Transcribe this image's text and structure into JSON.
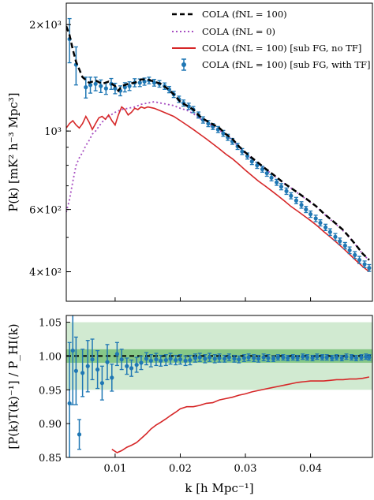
{
  "chart_data": [
    {
      "type": "line",
      "panel": "top",
      "yscale": "log",
      "xlim": [
        0.0025,
        0.0495
      ],
      "ylim": [
        330,
        2300
      ],
      "ylabel": "P(k) [mK² h⁻³ Mpc³]",
      "yticks": [
        {
          "value": 2000,
          "label": "2×10³"
        },
        {
          "value": 1000,
          "label": "10³"
        },
        {
          "value": 600,
          "label": "6×10²"
        },
        {
          "value": 400,
          "label": "4×10²"
        }
      ],
      "legend_position": "top-right",
      "series": [
        {
          "name": "COLA (fNL = 100)",
          "color": "#000000",
          "style": "dashed",
          "x": [
            0.0025,
            0.003,
            0.0035,
            0.004,
            0.005,
            0.006,
            0.0065,
            0.007,
            0.008,
            0.009,
            0.01,
            0.0105,
            0.011,
            0.012,
            0.013,
            0.014,
            0.015,
            0.016,
            0.017,
            0.018,
            0.019,
            0.02,
            0.021,
            0.022,
            0.023,
            0.024,
            0.025,
            0.026,
            0.027,
            0.028,
            0.029,
            0.03,
            0.031,
            0.032,
            0.033,
            0.034,
            0.035,
            0.036,
            0.037,
            0.038,
            0.039,
            0.04,
            0.041,
            0.042,
            0.043,
            0.044,
            0.045,
            0.046,
            0.047,
            0.048,
            0.049
          ],
          "y": [
            1980,
            1870,
            1700,
            1570,
            1420,
            1370,
            1380,
            1390,
            1360,
            1380,
            1340,
            1300,
            1340,
            1360,
            1370,
            1400,
            1400,
            1380,
            1360,
            1320,
            1270,
            1210,
            1180,
            1150,
            1100,
            1070,
            1045,
            1020,
            980,
            950,
            905,
            870,
            840,
            812,
            785,
            760,
            735,
            710,
            690,
            670,
            650,
            630,
            610,
            585,
            565,
            545,
            525,
            500,
            475,
            450,
            432
          ]
        },
        {
          "name": "COLA (fNL = 0)",
          "color": "#a64dc1",
          "style": "dotted",
          "x": [
            0.0025,
            0.003,
            0.0035,
            0.004,
            0.0045,
            0.005,
            0.0055,
            0.006,
            0.0065,
            0.007,
            0.0075,
            0.008,
            0.009,
            0.01,
            0.011,
            0.012,
            0.013,
            0.014,
            0.015,
            0.016,
            0.017,
            0.018,
            0.019,
            0.02,
            0.021,
            0.022,
            0.023,
            0.024,
            0.025,
            0.026,
            0.027,
            0.028,
            0.029,
            0.03,
            0.031,
            0.032,
            0.033,
            0.034,
            0.035,
            0.036,
            0.037,
            0.038,
            0.039,
            0.04,
            0.041,
            0.042,
            0.043,
            0.044,
            0.045,
            0.046,
            0.047,
            0.048,
            0.049
          ],
          "y": [
            590,
            640,
            720,
            800,
            840,
            870,
            910,
            940,
            980,
            1000,
            1030,
            1060,
            1100,
            1130,
            1150,
            1160,
            1170,
            1190,
            1200,
            1210,
            1200,
            1190,
            1180,
            1160,
            1145,
            1120,
            1085,
            1060,
            1030,
            1005,
            975,
            945,
            900,
            865,
            835,
            808,
            782,
            758,
            733,
            710,
            690,
            668,
            648,
            628,
            608,
            584,
            563,
            543,
            522,
            499,
            474,
            449,
            431
          ]
        },
        {
          "name": "COLA (fNL = 100) [sub FG, no TF]",
          "color": "#d62728",
          "style": "solid",
          "x": [
            0.0025,
            0.003,
            0.0035,
            0.004,
            0.0045,
            0.005,
            0.0055,
            0.006,
            0.0065,
            0.007,
            0.0075,
            0.008,
            0.0085,
            0.009,
            0.0095,
            0.01,
            0.0105,
            0.011,
            0.0115,
            0.012,
            0.0125,
            0.013,
            0.0135,
            0.014,
            0.0145,
            0.015,
            0.016,
            0.017,
            0.018,
            0.019,
            0.02,
            0.021,
            0.022,
            0.023,
            0.024,
            0.025,
            0.026,
            0.027,
            0.028,
            0.029,
            0.03,
            0.031,
            0.032,
            0.033,
            0.034,
            0.035,
            0.036,
            0.037,
            0.038,
            0.039,
            0.04,
            0.041,
            0.042,
            0.043,
            0.044,
            0.045,
            0.046,
            0.047,
            0.048,
            0.049
          ],
          "y": [
            1020,
            1050,
            1070,
            1040,
            1020,
            1050,
            1100,
            1060,
            1010,
            1050,
            1090,
            1100,
            1080,
            1110,
            1070,
            1040,
            1110,
            1170,
            1150,
            1110,
            1130,
            1160,
            1150,
            1170,
            1160,
            1170,
            1160,
            1140,
            1120,
            1100,
            1070,
            1040,
            1010,
            980,
            950,
            920,
            890,
            860,
            835,
            805,
            775,
            748,
            722,
            700,
            678,
            656,
            634,
            612,
            594,
            576,
            558,
            540,
            520,
            502,
            484,
            466,
            448,
            430,
            414,
            400
          ]
        },
        {
          "name": "COLA (fNL = 100) [sub FG, with TF]",
          "color": "#1f77b4",
          "style": "errorbar",
          "x": [
            0.003,
            0.004,
            0.0055,
            0.0062,
            0.007,
            0.0078,
            0.0086,
            0.0094,
            0.01,
            0.0108,
            0.0115,
            0.0122,
            0.013,
            0.0138,
            0.0145,
            0.0152,
            0.016,
            0.0168,
            0.0176,
            0.0183,
            0.019,
            0.0198,
            0.0205,
            0.0213,
            0.022,
            0.0228,
            0.0235,
            0.0243,
            0.025,
            0.0258,
            0.0266,
            0.0273,
            0.028,
            0.0288,
            0.0295,
            0.0303,
            0.031,
            0.0318,
            0.0326,
            0.0333,
            0.034,
            0.0348,
            0.0355,
            0.0363,
            0.037,
            0.0378,
            0.0386,
            0.0393,
            0.04,
            0.0408,
            0.0415,
            0.0423,
            0.043,
            0.0438,
            0.0445,
            0.0453,
            0.046,
            0.0468,
            0.0475,
            0.0483,
            0.049
          ],
          "y": [
            1820,
            1540,
            1330,
            1350,
            1360,
            1340,
            1320,
            1360,
            1320,
            1300,
            1330,
            1340,
            1370,
            1370,
            1380,
            1390,
            1370,
            1360,
            1340,
            1310,
            1270,
            1230,
            1200,
            1175,
            1150,
            1110,
            1075,
            1050,
            1030,
            1010,
            985,
            960,
            935,
            905,
            875,
            850,
            820,
            800,
            780,
            760,
            738,
            716,
            696,
            676,
            656,
            636,
            618,
            600,
            582,
            566,
            550,
            534,
            518,
            502,
            488,
            474,
            460,
            446,
            432,
            420,
            410
          ],
          "yerr": [
            260,
            190,
            90,
            70,
            60,
            55,
            50,
            48,
            45,
            42,
            40,
            38,
            36,
            34,
            32,
            30,
            30,
            29,
            28,
            27,
            26,
            25,
            24,
            24,
            23,
            22,
            22,
            21,
            20,
            20,
            19,
            19,
            18,
            18,
            17,
            17,
            16,
            16,
            15,
            15,
            15,
            14,
            14,
            14,
            13,
            13,
            13,
            12,
            12,
            12,
            11,
            11,
            11,
            11,
            10,
            10,
            10,
            10,
            10,
            9,
            9
          ]
        }
      ]
    },
    {
      "type": "line",
      "panel": "bottom",
      "xlim": [
        0.0025,
        0.0495
      ],
      "ylim": [
        0.85,
        1.06
      ],
      "xlabel": "k [h Mpc⁻¹]",
      "ylabel": "[P(k)T(k)⁻¹] / P_HI(k)",
      "xticks": [
        {
          "value": 0.01,
          "label": "0.01"
        },
        {
          "value": 0.02,
          "label": "0.02"
        },
        {
          "value": 0.03,
          "label": "0.03"
        },
        {
          "value": 0.04,
          "label": "0.04"
        }
      ],
      "yticks": [
        {
          "value": 1.05,
          "label": "1.05"
        },
        {
          "value": 1.0,
          "label": "1.00"
        },
        {
          "value": 0.95,
          "label": "0.95"
        },
        {
          "value": 0.9,
          "label": "0.90"
        },
        {
          "value": 0.85,
          "label": "0.85"
        }
      ],
      "bands": [
        {
          "low": 0.95,
          "high": 1.05,
          "color": "#2ca02c",
          "opacity": 0.22
        },
        {
          "low": 0.99,
          "high": 1.01,
          "color": "#2ca02c",
          "opacity": 0.45
        }
      ],
      "reference_line": {
        "y": 1.0,
        "color": "#000000",
        "style": "dashed"
      },
      "series": [
        {
          "color": "#d62728",
          "style": "solid",
          "x": [
            0.0095,
            0.0103,
            0.011,
            0.0118,
            0.0125,
            0.0133,
            0.014,
            0.0148,
            0.0155,
            0.0163,
            0.017,
            0.0178,
            0.0185,
            0.0193,
            0.02,
            0.021,
            0.022,
            0.023,
            0.024,
            0.025,
            0.026,
            0.027,
            0.028,
            0.029,
            0.03,
            0.031,
            0.032,
            0.033,
            0.034,
            0.035,
            0.036,
            0.037,
            0.038,
            0.039,
            0.04,
            0.041,
            0.042,
            0.043,
            0.044,
            0.045,
            0.046,
            0.047,
            0.048,
            0.049
          ],
          "y": [
            0.862,
            0.857,
            0.86,
            0.865,
            0.868,
            0.872,
            0.878,
            0.885,
            0.892,
            0.898,
            0.902,
            0.907,
            0.912,
            0.917,
            0.922,
            0.925,
            0.925,
            0.927,
            0.93,
            0.931,
            0.935,
            0.937,
            0.939,
            0.942,
            0.944,
            0.947,
            0.949,
            0.951,
            0.953,
            0.955,
            0.957,
            0.959,
            0.961,
            0.962,
            0.963,
            0.963,
            0.963,
            0.964,
            0.965,
            0.965,
            0.966,
            0.966,
            0.967,
            0.969
          ]
        },
        {
          "color": "#1f77b4",
          "style": "errorbar",
          "x": [
            0.003,
            0.0035,
            0.004,
            0.0045,
            0.005,
            0.0058,
            0.0065,
            0.0073,
            0.008,
            0.0088,
            0.0095,
            0.0103,
            0.011,
            0.0118,
            0.0125,
            0.0133,
            0.014,
            0.0148,
            0.0155,
            0.0163,
            0.017,
            0.0178,
            0.0185,
            0.0193,
            0.02,
            0.0208,
            0.0215,
            0.0223,
            0.023,
            0.0238,
            0.0245,
            0.0253,
            0.026,
            0.0268,
            0.0275,
            0.0283,
            0.029,
            0.0298,
            0.0305,
            0.0313,
            0.032,
            0.0328,
            0.0335,
            0.0343,
            0.035,
            0.0358,
            0.0365,
            0.0373,
            0.038,
            0.0388,
            0.0395,
            0.0403,
            0.041,
            0.0418,
            0.0425,
            0.0433,
            0.044,
            0.0448,
            0.0455,
            0.0463,
            0.047,
            0.0478,
            0.0485,
            0.049
          ],
          "y": [
            0.93,
            1.008,
            0.978,
            0.884,
            0.975,
            0.985,
            0.995,
            0.98,
            0.96,
            0.991,
            0.968,
            1.003,
            0.995,
            0.985,
            0.982,
            0.987,
            0.99,
            0.996,
            0.993,
            0.995,
            0.993,
            0.994,
            0.996,
            0.994,
            0.995,
            0.993,
            0.994,
            0.997,
            0.998,
            0.996,
            0.998,
            0.996,
            0.997,
            0.996,
            0.998,
            0.996,
            0.995,
            0.997,
            0.998,
            0.997,
            0.996,
            0.998,
            0.997,
            0.996,
            0.998,
            0.998,
            0.997,
            0.998,
            0.997,
            0.999,
            0.998,
            0.997,
            0.999,
            0.998,
            0.998,
            0.997,
            0.998,
            0.997,
            0.999,
            0.998,
            0.997,
            0.998,
            0.999,
            0.998
          ],
          "yerr": [
            0.09,
            0.08,
            0.05,
            0.022,
            0.035,
            0.038,
            0.03,
            0.028,
            0.025,
            0.026,
            0.02,
            0.017,
            0.015,
            0.012,
            0.012,
            0.011,
            0.01,
            0.009,
            0.009,
            0.009,
            0.008,
            0.008,
            0.008,
            0.007,
            0.007,
            0.007,
            0.007,
            0.006,
            0.006,
            0.006,
            0.006,
            0.006,
            0.006,
            0.005,
            0.005,
            0.005,
            0.005,
            0.005,
            0.005,
            0.005,
            0.005,
            0.005,
            0.005,
            0.004,
            0.004,
            0.004,
            0.004,
            0.004,
            0.004,
            0.004,
            0.004,
            0.004,
            0.004,
            0.004,
            0.004,
            0.004,
            0.004,
            0.004,
            0.004,
            0.004,
            0.004,
            0.004,
            0.004,
            0.004
          ]
        }
      ]
    }
  ]
}
